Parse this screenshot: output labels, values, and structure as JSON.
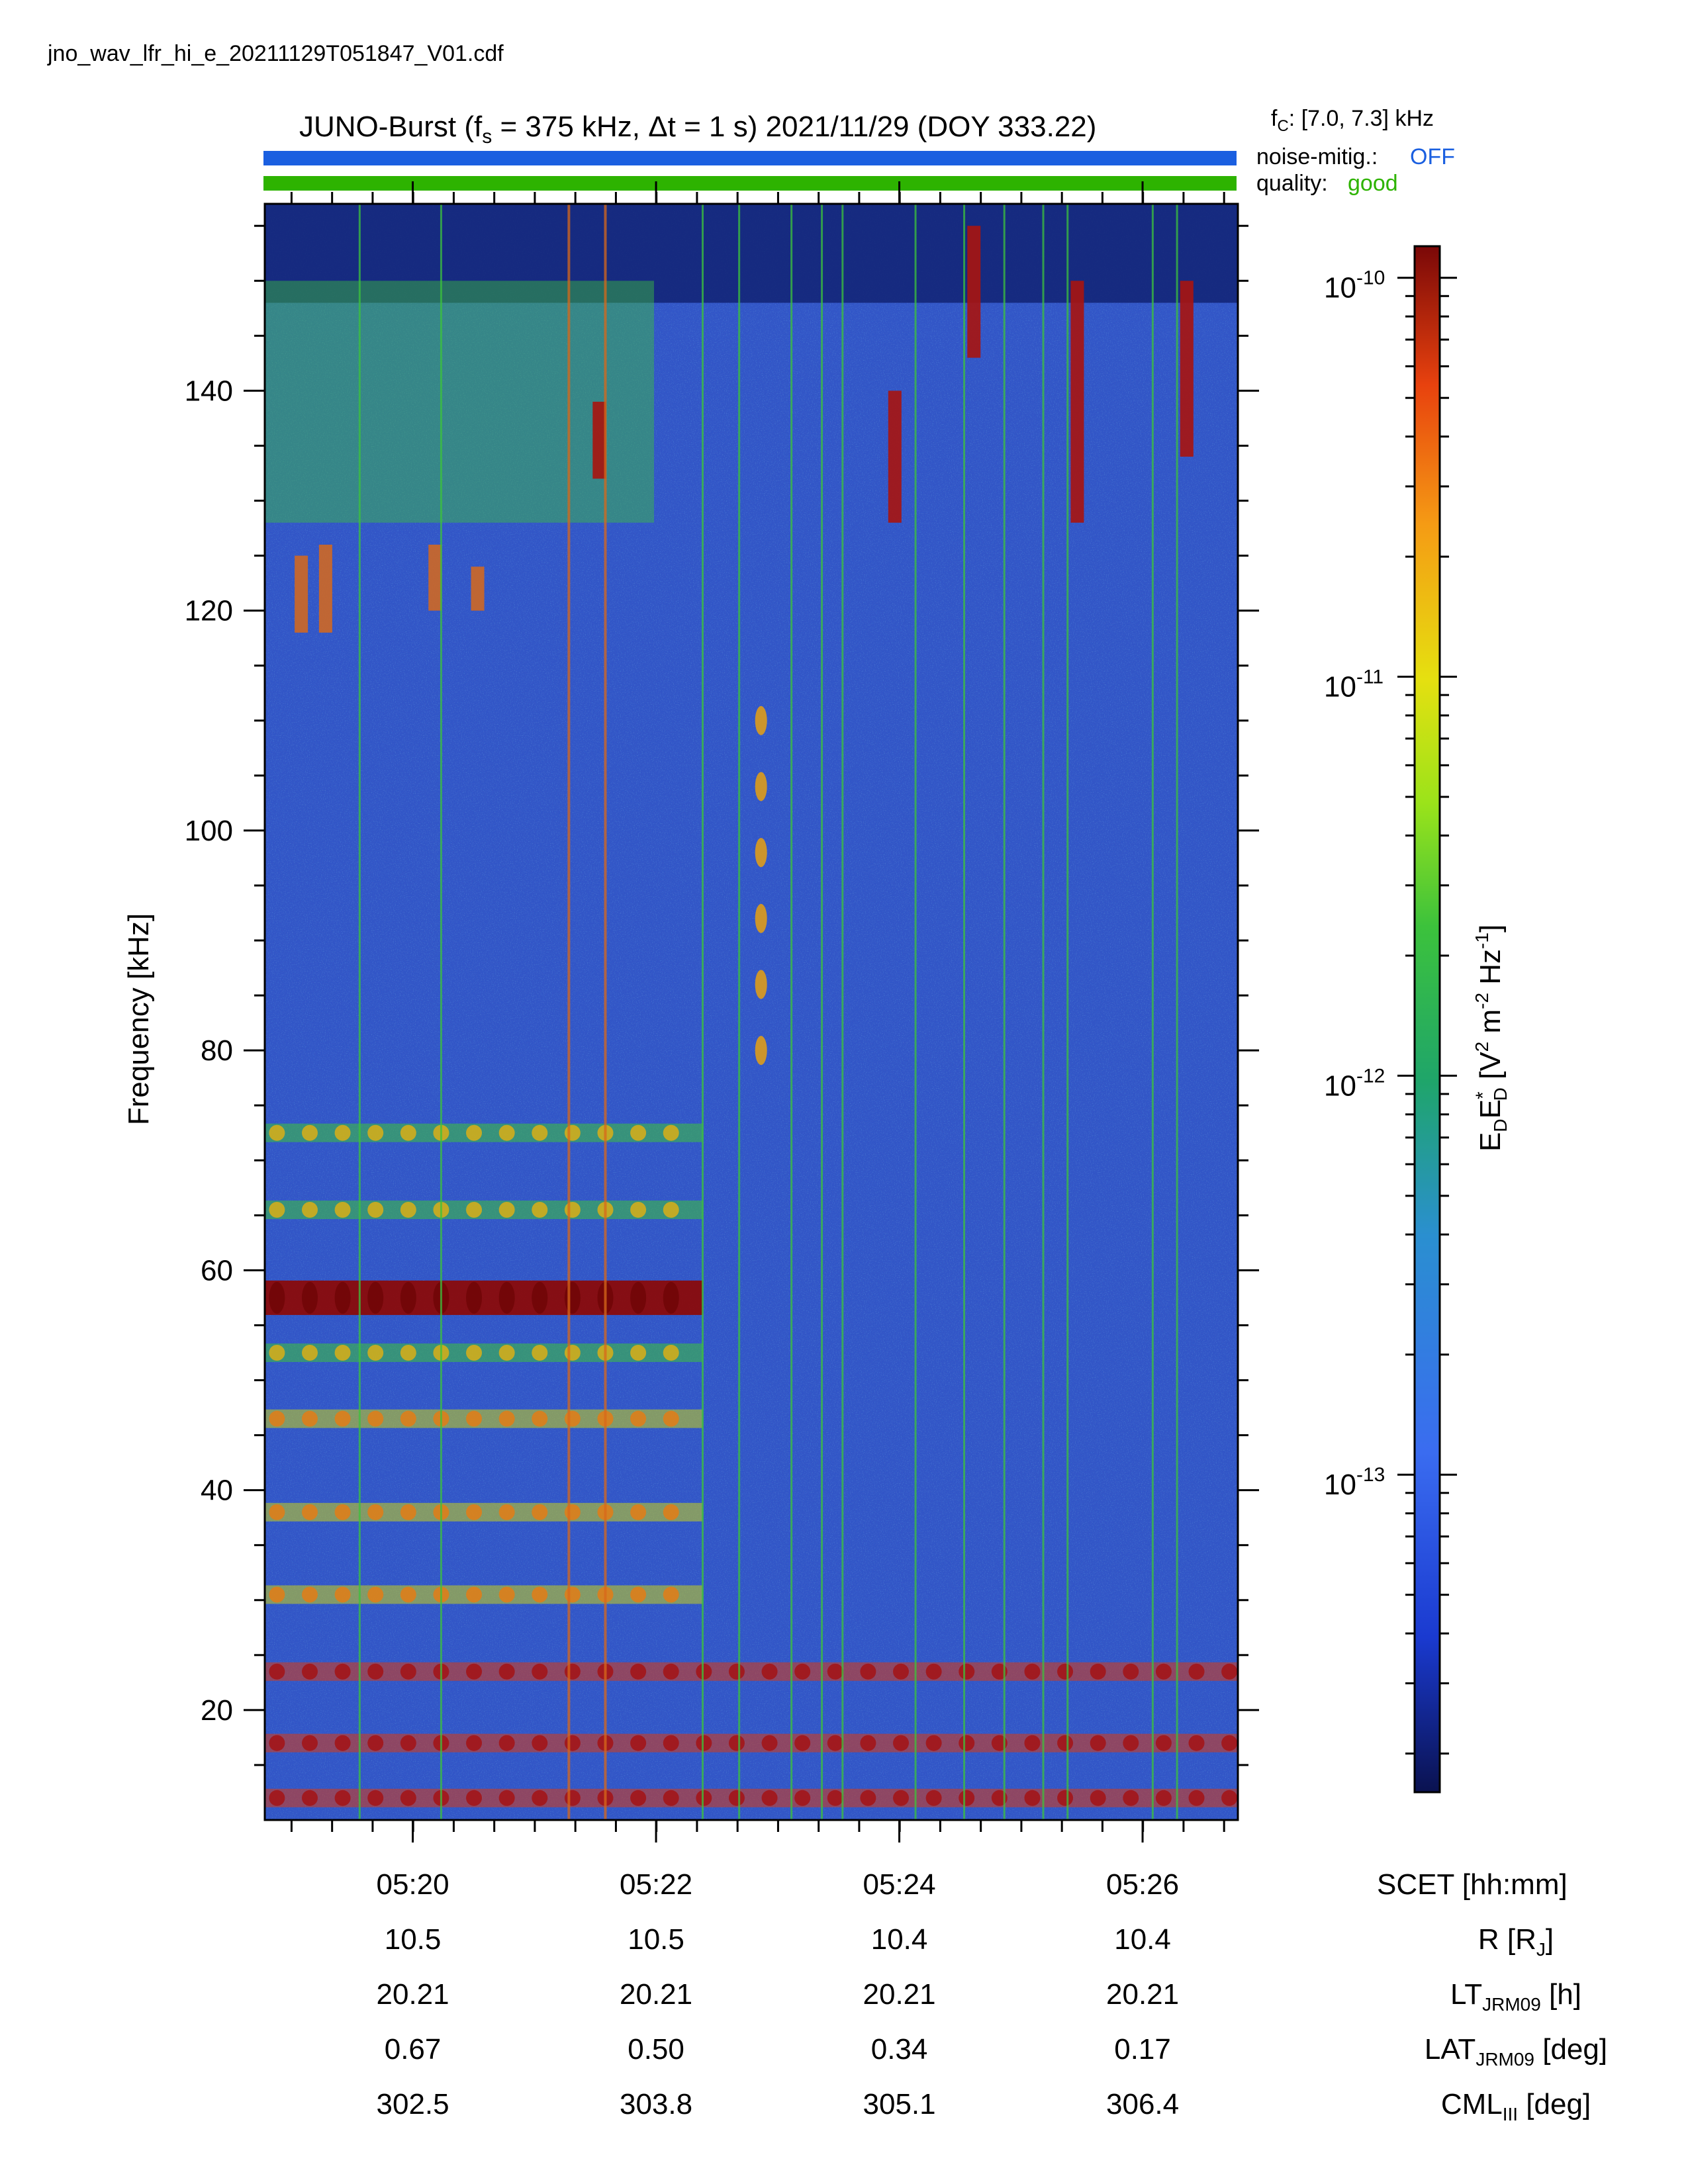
{
  "filename": "jno_wav_lfr_hi_e_20211129T051847_V01.cdf",
  "title": {
    "prefix": "JUNO-Burst (f",
    "fs_sub": "s",
    "mid": " = 375 kHz, Δt = 1 s)  2021/11/29 (DOY 333.22)"
  },
  "fc": {
    "label": "f",
    "sub": "C",
    "value": ": [7.0, 7.3] kHz"
  },
  "noise_mitig": {
    "label": "noise-mitig.:",
    "value": "OFF",
    "color": "#1a5fe0"
  },
  "quality": {
    "label": "quality:",
    "value": "good",
    "color": "#2db300"
  },
  "colors": {
    "blue_bar": "#1a5fe0",
    "green_bar": "#2db300"
  },
  "chart_data": {
    "type": "heatmap",
    "xlabel": "SCET [hh:mm]",
    "ylabel": "Frequency [kHz]",
    "xlim": [
      "05:18:47",
      "05:26:47"
    ],
    "ylim": [
      10,
      157
    ],
    "yticks": [
      20,
      40,
      60,
      80,
      100,
      120,
      140
    ],
    "xticks": [
      "05:20",
      "05:22",
      "05:24",
      "05:26"
    ],
    "colorbar": {
      "label_main": "E",
      "label_sub1": "D",
      "label_e2": "E",
      "label_star": "*",
      "label_sub2": "D",
      "label_units_open": " [V",
      "label_sup2": "2",
      "label_m": " m",
      "label_supm2": "-2",
      "label_hz": " Hz",
      "label_supm1": "-1",
      "label_close": "]",
      "scale": "log",
      "range": [
        1.6e-14,
        1.2e-10
      ],
      "tick_base": "10",
      "tick_exponents": [
        "-10",
        "-11",
        "-12",
        "-13"
      ]
    },
    "ephemeris": [
      {
        "label_main": "R [R",
        "label_sub": "J",
        "label_tail": "]",
        "values": [
          "10.5",
          "10.5",
          "10.4",
          "10.4"
        ]
      },
      {
        "label_main": "LT",
        "label_sub": "JRM09",
        "label_tail": " [h]",
        "values": [
          "20.21",
          "20.21",
          "20.21",
          "20.21"
        ]
      },
      {
        "label_main": "LAT",
        "label_sub": "JRM09",
        "label_tail": " [deg]",
        "values": [
          "0.67",
          "0.50",
          "0.34",
          "0.17"
        ]
      },
      {
        "label_main": "CML",
        "label_sub": "III",
        "label_tail": " [deg]",
        "values": [
          "302.5",
          "303.8",
          "305.1",
          "306.4"
        ]
      }
    ],
    "features": {
      "harmonic_bands_khz": [
        12,
        17,
        23.5,
        30.5,
        38,
        46.5,
        52.5,
        57.5,
        65.5,
        72.5
      ],
      "intense_band_khz": 57.5,
      "vertical_lines_minutes": [
        0.78,
        1.45,
        2.5,
        2.8,
        3.6,
        3.9,
        4.33,
        4.58,
        4.75,
        5.35,
        5.75,
        6.08,
        6.4,
        6.6,
        7.3,
        7.5
      ]
    }
  }
}
